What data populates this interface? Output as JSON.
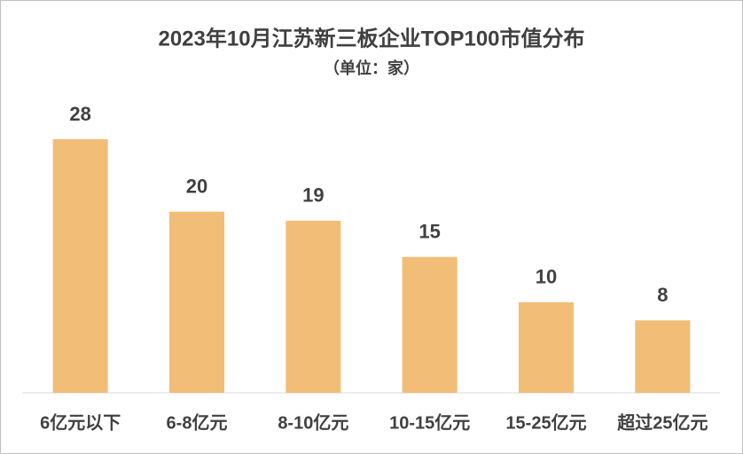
{
  "chart_data": {
    "type": "bar",
    "title": "2023年10月江苏新三板企业TOP100市值分布",
    "subtitle": "（单位：家）",
    "categories": [
      "6亿元以下",
      "6-8亿元",
      "8-10亿元",
      "10-15亿元",
      "15-25亿元",
      "超过25亿元"
    ],
    "values": [
      28,
      20,
      19,
      15,
      10,
      8
    ],
    "color": "#f2bd76"
  }
}
